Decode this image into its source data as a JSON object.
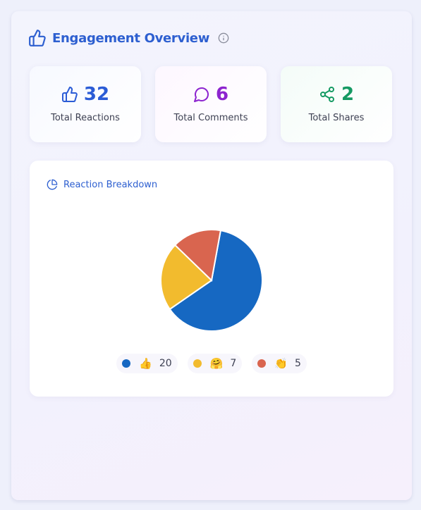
{
  "header": {
    "title": "Engagement Overview",
    "icon": "thumbs-up-icon",
    "info_icon": "info-icon"
  },
  "stats": [
    {
      "icon": "thumbs-up-icon",
      "value": "32",
      "label": "Total Reactions",
      "color": "#2b5cd6"
    },
    {
      "icon": "speech-bubble-icon",
      "value": "6",
      "label": "Total Comments",
      "color": "#8d24cf"
    },
    {
      "icon": "share-icon",
      "value": "2",
      "label": "Total Shares",
      "color": "#159a63"
    }
  ],
  "breakdown": {
    "title": "Reaction Breakdown",
    "icon": "pie-chart-icon"
  },
  "chart_data": {
    "type": "pie",
    "categories": [
      "👍",
      "🤗",
      "👏"
    ],
    "values": [
      20,
      7,
      5
    ],
    "colors": [
      "#1668c2",
      "#f2bb2e",
      "#d9654f"
    ]
  }
}
